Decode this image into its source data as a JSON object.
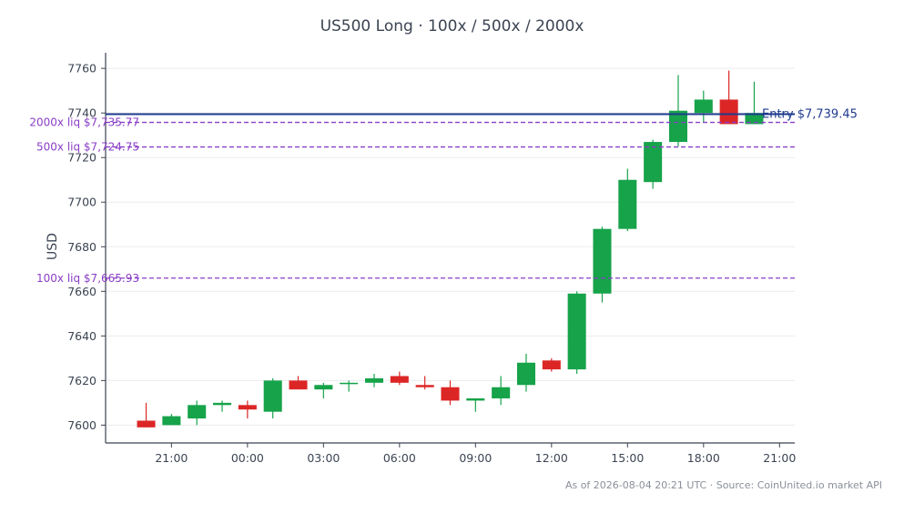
{
  "chart_data": {
    "type": "candlestick",
    "title": "US500 Long · 100x / 500x / 2000x",
    "ylabel": "USD",
    "ylim": [
      7592,
      7767
    ],
    "xlim": [
      -2.6,
      24.6
    ],
    "y_ticks": [
      7600,
      7620,
      7640,
      7660,
      7680,
      7700,
      7720,
      7740,
      7760
    ],
    "x_ticks": [
      {
        "label": "21:00",
        "pos": 0
      },
      {
        "label": "00:00",
        "pos": 3
      },
      {
        "label": "03:00",
        "pos": 6
      },
      {
        "label": "06:00",
        "pos": 9
      },
      {
        "label": "09:00",
        "pos": 12
      },
      {
        "label": "12:00",
        "pos": 15
      },
      {
        "label": "15:00",
        "pos": 18
      },
      {
        "label": "18:00",
        "pos": 21
      },
      {
        "label": "21:00",
        "pos": 24
      }
    ],
    "candles": [
      {
        "t": -1,
        "o": 7602,
        "h": 7610,
        "l": 7599,
        "c": 7599
      },
      {
        "t": 0,
        "o": 7600,
        "h": 7605,
        "l": 7600,
        "c": 7604
      },
      {
        "t": 1,
        "o": 7603,
        "h": 7611,
        "l": 7600,
        "c": 7609
      },
      {
        "t": 2,
        "o": 7609,
        "h": 7611,
        "l": 7606,
        "c": 7610
      },
      {
        "t": 3,
        "o": 7609,
        "h": 7611,
        "l": 7603,
        "c": 7607
      },
      {
        "t": 4,
        "o": 7606,
        "h": 7621,
        "l": 7603,
        "c": 7620
      },
      {
        "t": 5,
        "o": 7620,
        "h": 7622,
        "l": 7616,
        "c": 7616
      },
      {
        "t": 6,
        "o": 7616,
        "h": 7619,
        "l": 7612,
        "c": 7618
      },
      {
        "t": 7,
        "o": 7619,
        "h": 7620,
        "l": 7615,
        "c": 7619
      },
      {
        "t": 8,
        "o": 7619,
        "h": 7623,
        "l": 7617,
        "c": 7621
      },
      {
        "t": 9,
        "o": 7622,
        "h": 7624,
        "l": 7618,
        "c": 7619
      },
      {
        "t": 10,
        "o": 7618,
        "h": 7622,
        "l": 7616,
        "c": 7617
      },
      {
        "t": 11,
        "o": 7617,
        "h": 7620,
        "l": 7609,
        "c": 7611
      },
      {
        "t": 12,
        "o": 7611,
        "h": 7612,
        "l": 7606,
        "c": 7612
      },
      {
        "t": 13,
        "o": 7612,
        "h": 7622,
        "l": 7609,
        "c": 7617
      },
      {
        "t": 14,
        "o": 7618,
        "h": 7632,
        "l": 7615,
        "c": 7628
      },
      {
        "t": 15,
        "o": 7629,
        "h": 7630,
        "l": 7624,
        "c": 7625
      },
      {
        "t": 16,
        "o": 7625,
        "h": 7660,
        "l": 7623,
        "c": 7659
      },
      {
        "t": 17,
        "o": 7659,
        "h": 7689,
        "l": 7655,
        "c": 7688
      },
      {
        "t": 18,
        "o": 7688,
        "h": 7715,
        "l": 7687,
        "c": 7710
      },
      {
        "t": 19,
        "o": 7709,
        "h": 7728,
        "l": 7706,
        "c": 7727
      },
      {
        "t": 20,
        "o": 7727,
        "h": 7757,
        "l": 7725,
        "c": 7741
      },
      {
        "t": 21,
        "o": 7740,
        "h": 7750,
        "l": 7736,
        "c": 7746
      },
      {
        "t": 22,
        "o": 7746,
        "h": 7759,
        "l": 7735,
        "c": 7735
      },
      {
        "t": 23,
        "o": 7735,
        "h": 7754,
        "l": 7735,
        "c": 7740
      }
    ],
    "lines": [
      {
        "value": 7739.45,
        "label": "Entry $7,739.45",
        "color": "#1f3b8f",
        "style": "solid",
        "label_side": "right"
      },
      {
        "value": 7735.77,
        "label": "2000x liq $7,735.77",
        "color": "#8a3fc7",
        "style": "dashed",
        "label_side": "left"
      },
      {
        "value": 7724.75,
        "label": "500x liq $7,724.75",
        "color": "#8a3fc7",
        "style": "dashed",
        "label_side": "left"
      },
      {
        "value": 7665.93,
        "label": "100x liq $7,665.93",
        "color": "#8a3fc7",
        "style": "dashed",
        "label_side": "left"
      }
    ],
    "colors": {
      "up": "#16a34a",
      "down": "#dc2626"
    },
    "grid": true
  },
  "footnote": "As of 2026-08-04 20:21 UTC · Source: CoinUnited.io market API"
}
